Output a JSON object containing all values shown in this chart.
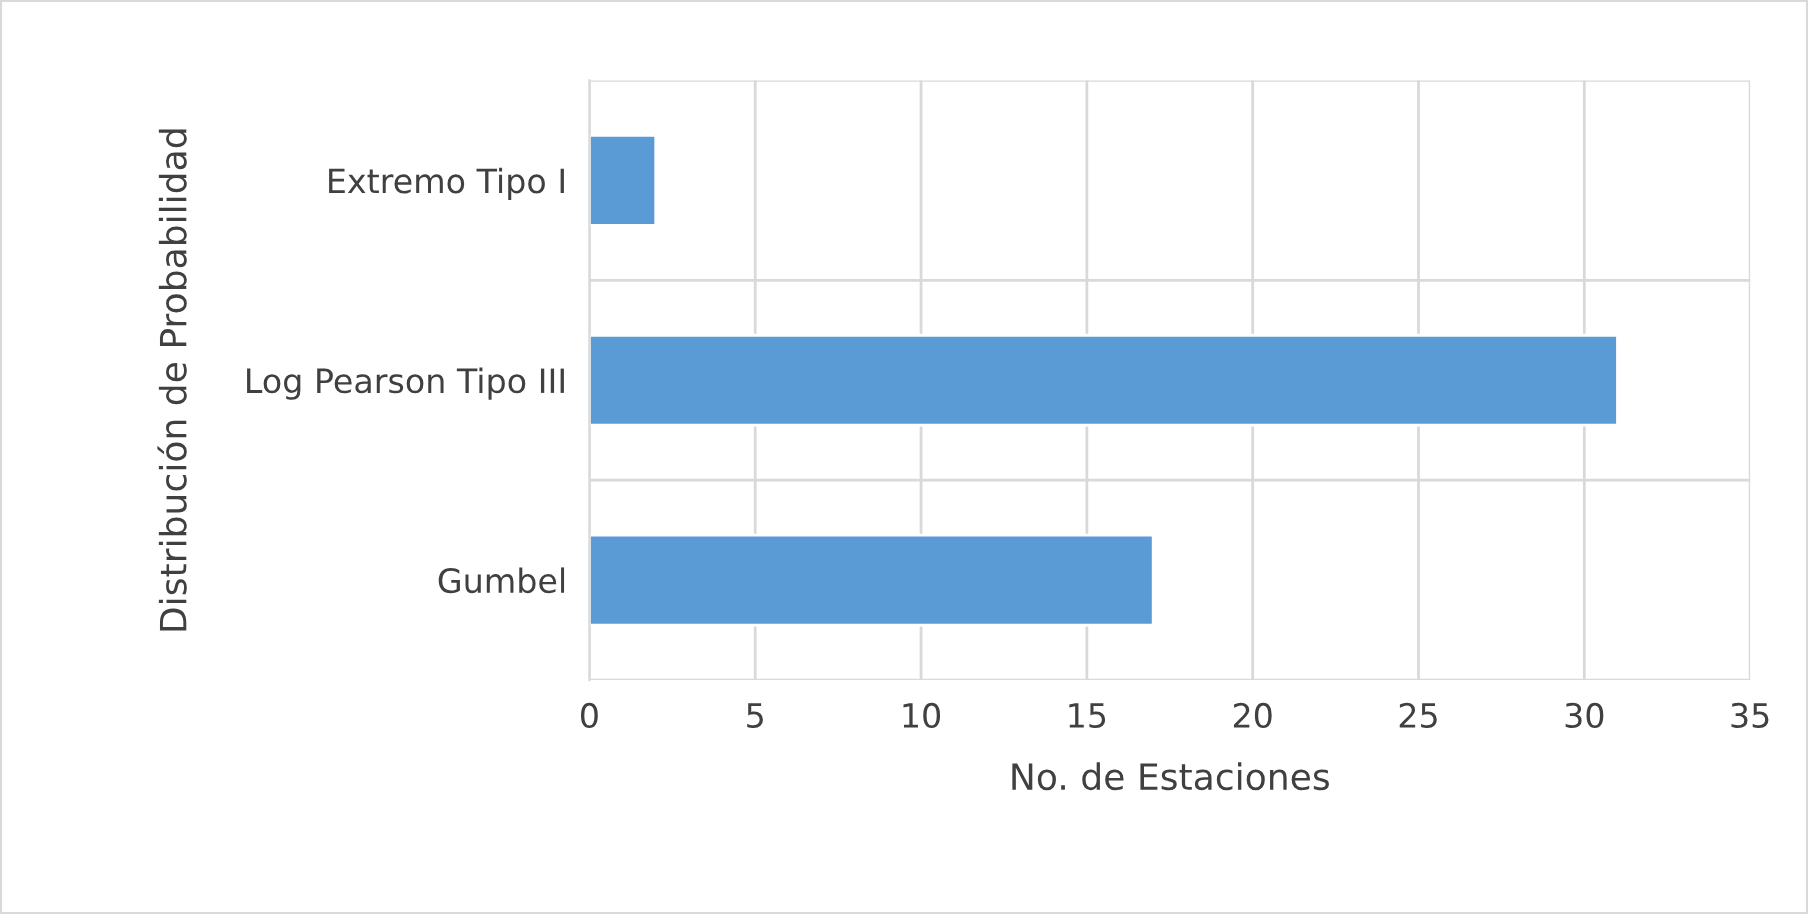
{
  "chart_data": {
    "type": "bar",
    "orientation": "horizontal",
    "xlabel": "No. de Estaciones",
    "ylabel": "Distribución de Probabilidad",
    "categories": [
      "Extremo Tipo I",
      "Log Pearson Tipo III",
      "Gumbel"
    ],
    "values": [
      2,
      31,
      17
    ],
    "color": "#5b9bd5",
    "xlim": [
      0,
      35
    ],
    "xticks": [
      0,
      5,
      10,
      15,
      20,
      25,
      30,
      35
    ],
    "grid": true
  }
}
